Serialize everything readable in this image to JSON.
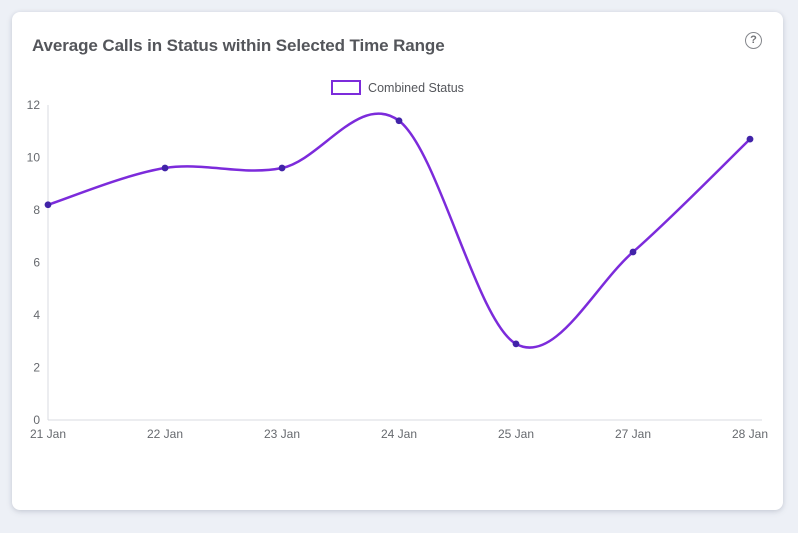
{
  "page": {
    "background_color": "#EDF0F6",
    "card_color": "#FFFFFF"
  },
  "card": {
    "title": "Average Calls in Status within Selected Time Range",
    "title_color": "#54565B"
  },
  "icons": {
    "help_glyph": "?"
  },
  "legend": {
    "items": [
      {
        "label": "Combined Status"
      }
    ]
  },
  "chart_data": {
    "type": "line",
    "title": "Average Calls in Status within Selected Time Range",
    "categories": [
      "21 Jan",
      "22 Jan",
      "23 Jan",
      "24 Jan",
      "25 Jan",
      "27 Jan",
      "28 Jan"
    ],
    "series": [
      {
        "name": "Combined Status",
        "values": [
          8.2,
          9.6,
          9.6,
          11.4,
          2.9,
          6.4,
          10.7
        ],
        "line_color": "#7C2BDB",
        "marker_color": "#4123A8",
        "smooth": true
      }
    ],
    "xlabel": "",
    "ylabel": "",
    "ylim": [
      0,
      12
    ],
    "yticks": [
      0,
      2,
      4,
      6,
      8,
      10,
      12
    ],
    "grid": false,
    "legend_position": "top-center",
    "axis_color": "#D9DBE0",
    "tick_label_color": "#66696E"
  }
}
